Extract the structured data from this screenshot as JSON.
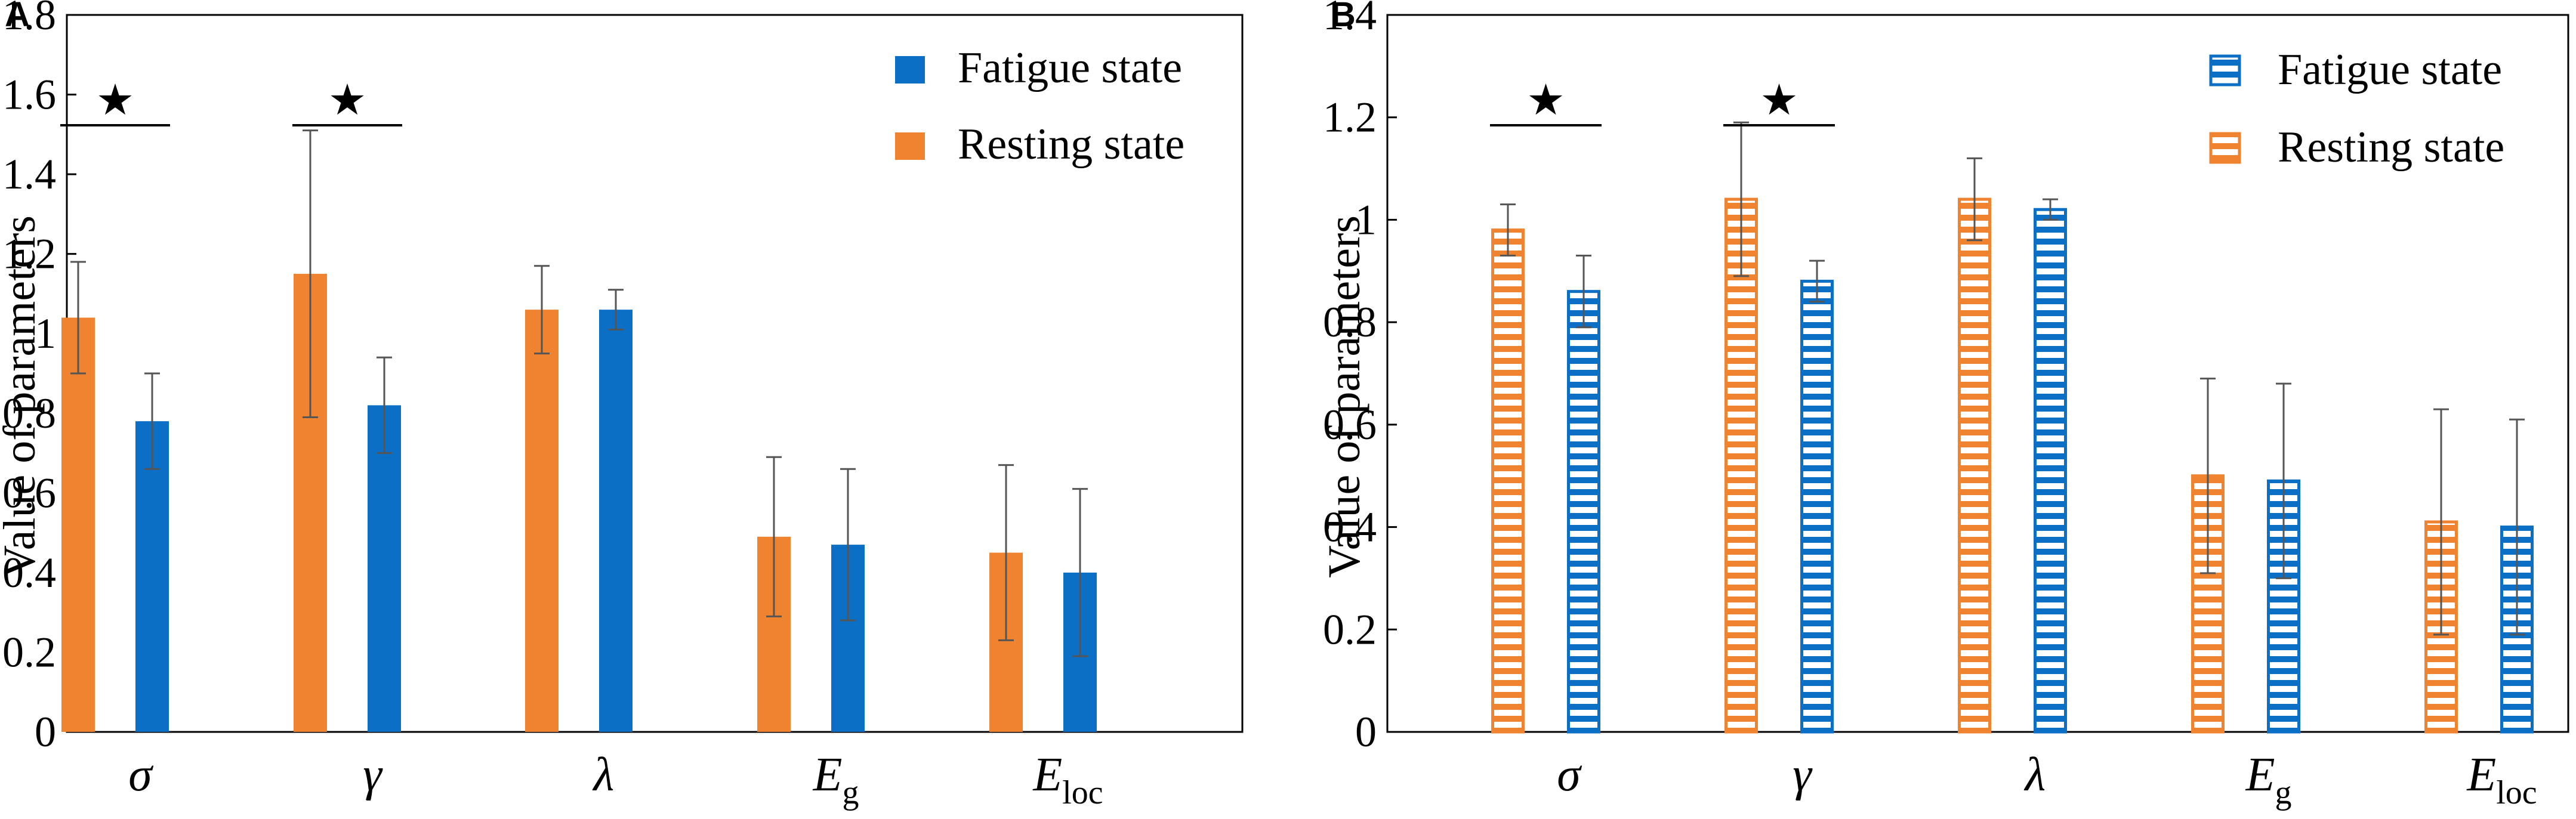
{
  "colors": {
    "fatigue": "#0b6fc6",
    "resting": "#f0832f",
    "error_bar": "#555555",
    "axis": "#000000"
  },
  "chart_data": [
    {
      "panel": "A",
      "type": "bar",
      "style": "solid",
      "ylabel": "Value of parameters",
      "ylim": [
        0,
        1.8
      ],
      "yticks": [
        "0",
        "0.2",
        "0.4",
        "0.6",
        "0.8",
        "1",
        "1.2",
        "1.4",
        "1.6",
        "1.8"
      ],
      "categories": [
        {
          "main": "σ",
          "sub": ""
        },
        {
          "main": "γ",
          "sub": ""
        },
        {
          "main": "λ",
          "sub": ""
        },
        {
          "main": "E",
          "sub": "g"
        },
        {
          "main": "E",
          "sub": "loc"
        }
      ],
      "series": [
        {
          "name": "Resting state",
          "values": [
            1.04,
            1.15,
            1.06,
            0.49,
            0.45
          ],
          "errors": [
            0.14,
            0.36,
            0.11,
            0.2,
            0.22
          ]
        },
        {
          "name": "Fatigue state",
          "values": [
            0.78,
            0.82,
            1.06,
            0.47,
            0.4
          ],
          "errors": [
            0.12,
            0.12,
            0.05,
            0.19,
            0.21
          ]
        }
      ],
      "legend": [
        "Fatigue state",
        "Resting state"
      ],
      "significance": [
        {
          "category_index": 0,
          "marker": "★"
        },
        {
          "category_index": 1,
          "marker": "★"
        }
      ]
    },
    {
      "panel": "B",
      "type": "bar",
      "style": "striped",
      "ylabel": "Value of parameters",
      "ylim": [
        0,
        1.4
      ],
      "yticks": [
        "0",
        "0.2",
        "0.4",
        "0.6",
        "0.8",
        "1",
        "1.2",
        "1.4"
      ],
      "categories": [
        {
          "main": "σ",
          "sub": ""
        },
        {
          "main": "γ",
          "sub": ""
        },
        {
          "main": "λ",
          "sub": ""
        },
        {
          "main": "E",
          "sub": "g"
        },
        {
          "main": "E",
          "sub": "loc"
        }
      ],
      "series": [
        {
          "name": "Resting state",
          "values": [
            0.98,
            1.04,
            1.04,
            0.5,
            0.41
          ],
          "errors": [
            0.05,
            0.15,
            0.08,
            0.19,
            0.22
          ]
        },
        {
          "name": "Fatigue state",
          "values": [
            0.86,
            0.88,
            1.02,
            0.49,
            0.4
          ],
          "errors": [
            0.07,
            0.04,
            0.02,
            0.19,
            0.21
          ]
        }
      ],
      "legend": [
        "Fatigue state",
        "Resting state"
      ],
      "significance": [
        {
          "category_index": 0,
          "marker": "★"
        },
        {
          "category_index": 1,
          "marker": "★"
        }
      ]
    }
  ]
}
